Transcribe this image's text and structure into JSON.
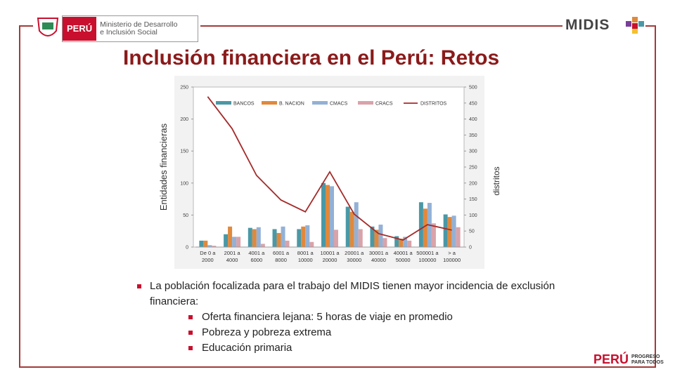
{
  "header": {
    "country": "PERÚ",
    "ministry_line1": "Ministerio de Desarrollo",
    "ministry_line2": "e Inclusión Social",
    "brand": "MIDIS"
  },
  "title": "Inclusión financiera en el Perú: Retos",
  "chart_data": {
    "type": "bar",
    "categories": [
      "De 0 a 2000",
      "2001 a 4000",
      "4001 a 6000",
      "6001 a 8000",
      "8001 a 10000",
      "10001 a 20000",
      "20001 a 30000",
      "30001 a 40000",
      "40001 a 50000",
      "500001 a 100000",
      "> a 100000"
    ],
    "series": [
      {
        "name": "BANCOS",
        "color": "#4a98a6",
        "values": [
          10,
          20,
          30,
          28,
          28,
          100,
          63,
          32,
          17,
          70,
          51
        ]
      },
      {
        "name": "B. NACION",
        "color": "#e0893c",
        "values": [
          10,
          32,
          28,
          22,
          32,
          97,
          55,
          27,
          13,
          60,
          47
        ]
      },
      {
        "name": "CMACS",
        "color": "#93b1d6",
        "values": [
          3,
          16,
          31,
          32,
          34,
          95,
          70,
          35,
          16,
          69,
          49
        ]
      },
      {
        "name": "CRACS",
        "color": "#d9a3aa",
        "values": [
          2,
          16,
          5,
          10,
          8,
          27,
          28,
          14,
          10,
          37,
          31
        ]
      },
      {
        "name": "DISTRITOS",
        "color": "#a52a2a",
        "type": "line",
        "axis": "y2",
        "values": [
          470,
          370,
          224,
          147,
          110,
          235,
          103,
          42,
          22,
          70,
          53
        ]
      }
    ],
    "y_label": "Entidades financieras",
    "y2_label": "distritos",
    "ylim": [
      0,
      250
    ],
    "yticks": [
      0,
      50,
      100,
      150,
      200,
      250
    ],
    "y2lim": [
      0,
      500
    ],
    "y2ticks": [
      0,
      50,
      100,
      150,
      200,
      250,
      300,
      350,
      400,
      450,
      500
    ]
  },
  "bullets": {
    "main": "La población focalizada para el trabajo del MIDIS tienen mayor incidencia de exclusión financiera:",
    "sub": [
      "Oferta financiera lejana: 5 horas de viaje en promedio",
      "Pobreza y pobreza extrema",
      "Educación primaria"
    ]
  },
  "footer": {
    "country": "PERÚ",
    "slogan1": "PROGRESO",
    "slogan2": "PARA TODOS"
  }
}
